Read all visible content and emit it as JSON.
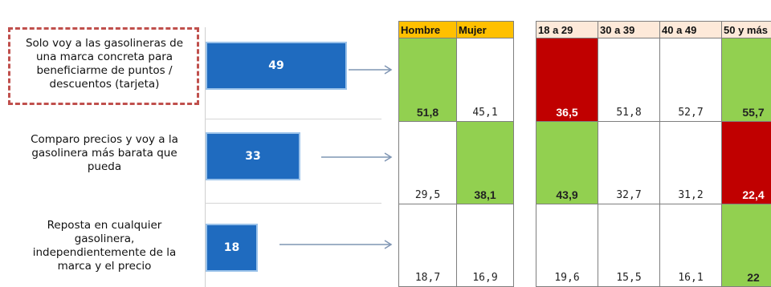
{
  "chart_data": {
    "type": "bar",
    "categories": [
      "Solo voy a las gasolineras de una marca concreta para beneficiarme de puntos / descuentos (tarjeta)",
      "Comparo precios y voy a la gasolinera más barata que pueda",
      "Reposta en cualquier gasolinera, independientemente de la marca y el precio"
    ],
    "values": [
      49,
      33,
      18
    ],
    "label_lines": [
      [
        "Solo voy a las gasolineras de",
        "una marca concreta para",
        "beneficiarme de puntos /",
        "descuentos (tarjeta)"
      ],
      [
        "Comparo precios y voy a la",
        "gasolinera más barata que",
        "pueda"
      ],
      [
        "Reposta en cualquier",
        "gasolinera,",
        "independientemente de la",
        "marca y el precio"
      ]
    ],
    "xlim": [
      0,
      60
    ]
  },
  "table": {
    "gender_headers": [
      "Hombre",
      "Mujer"
    ],
    "age_headers": [
      "18 a 29",
      "30 a 39",
      "40 a 49",
      "50 y más"
    ],
    "rows": [
      {
        "gender": [
          {
            "v": "51,8",
            "s": "hi"
          },
          {
            "v": "45,1",
            "s": ""
          }
        ],
        "age": [
          {
            "v": "36,5",
            "s": "lo"
          },
          {
            "v": "51,8",
            "s": ""
          },
          {
            "v": "52,7",
            "s": ""
          },
          {
            "v": "55,7",
            "s": "hi"
          }
        ]
      },
      {
        "gender": [
          {
            "v": "29,5",
            "s": ""
          },
          {
            "v": "38,1",
            "s": "hi"
          }
        ],
        "age": [
          {
            "v": "43,9",
            "s": "hi"
          },
          {
            "v": "32,7",
            "s": ""
          },
          {
            "v": "31,2",
            "s": ""
          },
          {
            "v": "22,4",
            "s": "lo"
          }
        ]
      },
      {
        "gender": [
          {
            "v": "18,7",
            "s": ""
          },
          {
            "v": "16,9",
            "s": ""
          }
        ],
        "age": [
          {
            "v": "19,6",
            "s": ""
          },
          {
            "v": "15,5",
            "s": ""
          },
          {
            "v": "16,1",
            "s": ""
          },
          {
            "v": "22",
            "s": "hi"
          }
        ]
      }
    ]
  },
  "colors": {
    "bar": "#1f6bbf",
    "gender_header": "#ffc000",
    "age_header": "#fde9d9",
    "highlight_high": "#92d050",
    "highlight_low": "#c00000",
    "callout_border": "#c0504d"
  }
}
